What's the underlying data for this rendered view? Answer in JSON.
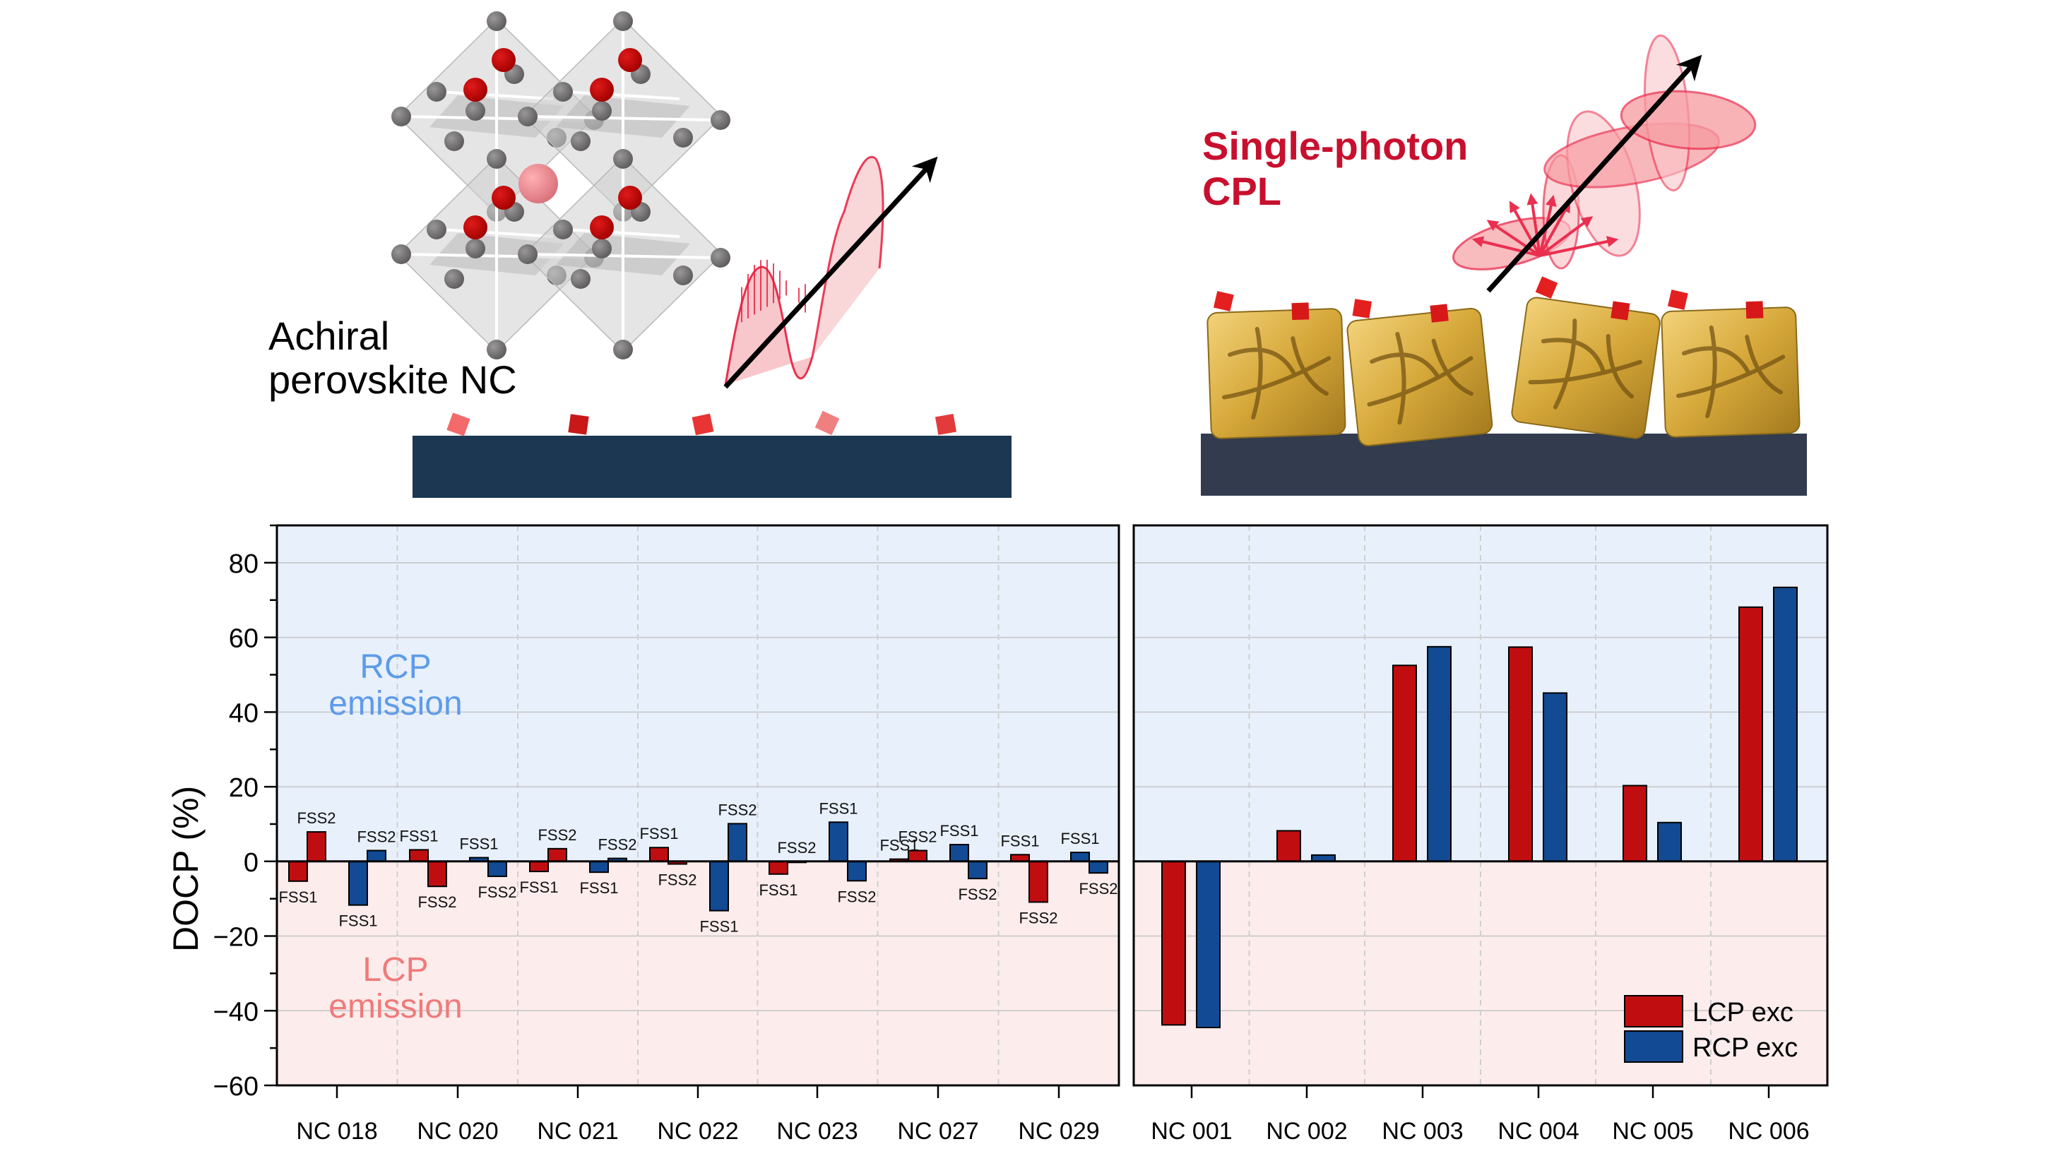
{
  "figure": {
    "illustrations": {
      "left": {
        "label_lines": [
          "Achiral",
          "perovskite NC"
        ],
        "structure": "perovskite-crystal-lattice",
        "emission": "linearly-polarized-wave"
      },
      "right": {
        "label_lines": [
          "Single-photon",
          "CPL"
        ],
        "structure": "chiral-gold-nanocubes",
        "emission": "circularly-polarized-wave"
      }
    },
    "colors": {
      "lcp_exc": "#C00E10",
      "rcp_exc": "#124A94",
      "rcp_zone_bg": "#E8F0FB",
      "lcp_zone_bg": "#FCECEC",
      "rcp_zone_text": "#5E9BE8",
      "lcp_zone_text": "#F07A7A",
      "cpl_title": "#C8102E"
    }
  },
  "chart_data": [
    {
      "type": "bar",
      "title": "",
      "xlabel": "",
      "ylabel": "DOCP (%)",
      "ylim": [
        -60,
        90
      ],
      "yticks": [
        -60,
        -40,
        -20,
        0,
        20,
        40,
        60,
        80
      ],
      "ytick_labels": [
        "−60",
        "−40",
        "−20",
        "0",
        "20",
        "40",
        "60",
        "80"
      ],
      "grid": true,
      "annotations": [
        {
          "lines": [
            "RCP",
            "emission"
          ],
          "region": "positive"
        },
        {
          "lines": [
            "LCP",
            "emission"
          ],
          "region": "negative"
        }
      ],
      "categories": [
        "NC 018",
        "NC 020",
        "NC 021",
        "NC 022",
        "NC 023",
        "NC 027",
        "NC 029"
      ],
      "series": [
        {
          "name": "LCP exc FSS1",
          "excitation": "LCP",
          "state": "FSS1",
          "values": [
            -5.3,
            3.1,
            -2.7,
            3.7,
            -3.4,
            0.6,
            1.8
          ]
        },
        {
          "name": "LCP exc FSS2",
          "excitation": "LCP",
          "state": "FSS2",
          "values": [
            7.9,
            -6.7,
            3.4,
            -0.7,
            0.0,
            2.9,
            -10.9
          ]
        },
        {
          "name": "RCP exc FSS1",
          "excitation": "RCP",
          "state": "FSS1",
          "values": [
            -11.7,
            1.0,
            -2.9,
            -13.2,
            10.5,
            4.5,
            2.4
          ]
        },
        {
          "name": "RCP exc FSS2",
          "excitation": "RCP",
          "state": "FSS2",
          "values": [
            2.9,
            -4.0,
            0.8,
            10.1,
            -5.2,
            -4.6,
            -3.1
          ]
        }
      ],
      "bar_labels": {
        "LCP exc FSS1": [
          "FSS1",
          "FSS1",
          "FSS1",
          "FSS1",
          "FSS1",
          "FSS1",
          "FSS1"
        ],
        "LCP exc FSS2": [
          "FSS2",
          "FSS2",
          "FSS2",
          "FSS2",
          "FSS2",
          "FSS2",
          "FSS2"
        ],
        "RCP exc FSS1": [
          "FSS1",
          "FSS1",
          "FSS1",
          "FSS1",
          "FSS1",
          "FSS1",
          "FSS1"
        ],
        "RCP exc FSS2": [
          "FSS2",
          "FSS2",
          "FSS2",
          "FSS2",
          "FSS2",
          "FSS2",
          "FSS2"
        ]
      }
    },
    {
      "type": "bar",
      "title": "",
      "xlabel": "",
      "ylabel": "",
      "ylim": [
        -60,
        90
      ],
      "grid": true,
      "legend": {
        "placement": "bottom-right",
        "entries": [
          "LCP exc",
          "RCP exc"
        ]
      },
      "categories": [
        "NC 001",
        "NC 002",
        "NC 003",
        "NC 004",
        "NC 005",
        "NC 006"
      ],
      "series": [
        {
          "name": "LCP exc",
          "values": [
            -43.8,
            8.2,
            52.5,
            57.4,
            20.3,
            68.1
          ]
        },
        {
          "name": "RCP exc",
          "values": [
            -44.5,
            1.7,
            57.5,
            45.1,
            10.4,
            73.4
          ]
        }
      ]
    }
  ]
}
